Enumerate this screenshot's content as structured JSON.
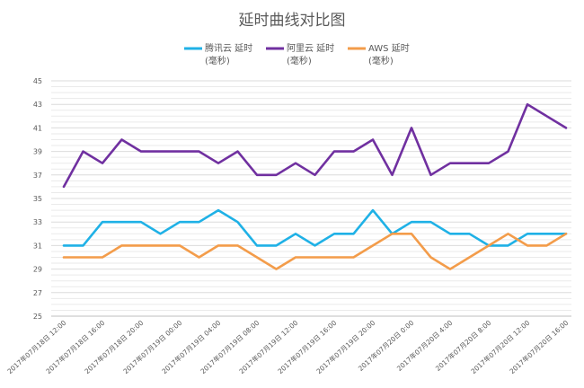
{
  "chart_data": {
    "type": "line",
    "title": "延时曲线对比图",
    "xlabel": "",
    "ylabel": "",
    "ylim": [
      25,
      45
    ],
    "yticks": [
      25,
      27,
      29,
      31,
      33,
      35,
      37,
      39,
      41,
      43,
      45
    ],
    "grid": true,
    "legend_position": "top",
    "x_labels": [
      "2017年07月18日 12:00",
      "2017年07月18日 16:00",
      "2017年07月18日 20:00",
      "2017年07月19日 00:00",
      "2017年07月19日 04:00",
      "2017年07月19日 08:00",
      "2017年07月19日 12:00",
      "2017年07月19日 16:00",
      "2017年07月19日 20:00",
      "2017年07月20日 0:00",
      "2017年07月20日 4:00",
      "2017年07月20日 8:00",
      "2017年07月20日 12:00",
      "2017年07月20日 16:00"
    ],
    "series": [
      {
        "name_line1": "腾讯云 延时",
        "name_line2": "(毫秒)",
        "color": "#1fb1e6",
        "values": [
          31,
          31,
          33,
          33,
          33,
          32,
          33,
          33,
          34,
          33,
          31,
          31,
          32,
          31,
          32,
          32,
          34,
          32,
          33,
          33,
          32,
          32,
          31,
          31,
          32,
          32,
          32
        ]
      },
      {
        "name_line1": "阿里云 延时",
        "name_line2": "(毫秒)",
        "color": "#7030a0",
        "values": [
          36,
          39,
          38,
          40,
          39,
          39,
          39,
          39,
          38,
          39,
          37,
          37,
          38,
          37,
          39,
          39,
          40,
          37,
          41,
          37,
          38,
          38,
          38,
          39,
          43,
          42,
          41
        ]
      },
      {
        "name_line1": "AWS 延时",
        "name_line2": "(毫秒)",
        "color": "#f39c4a",
        "values": [
          30,
          30,
          30,
          31,
          31,
          31,
          31,
          30,
          31,
          31,
          30,
          29,
          30,
          30,
          30,
          30,
          31,
          32,
          32,
          30,
          29,
          30,
          31,
          32,
          31,
          31,
          32
        ]
      }
    ]
  }
}
